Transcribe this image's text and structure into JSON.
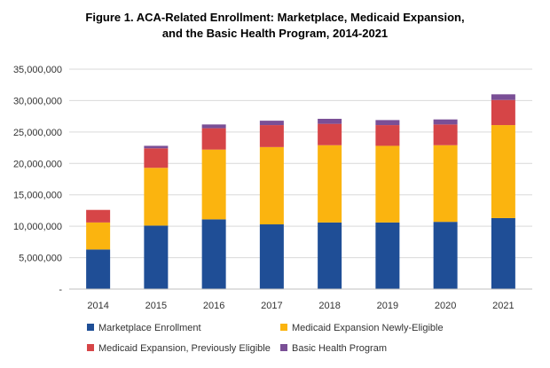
{
  "chart_data": {
    "type": "bar",
    "stacked": true,
    "title_lines": [
      "Figure 1. ACA-Related Enrollment: Marketplace, Medicaid Expansion,",
      "and the Basic Health Program, 2014-2021"
    ],
    "xlabel": "",
    "ylabel": "",
    "categories": [
      "2014",
      "2015",
      "2016",
      "2017",
      "2018",
      "2019",
      "2020",
      "2021"
    ],
    "ylim": [
      0,
      35000000
    ],
    "y_ticks": [
      0,
      5000000,
      10000000,
      15000000,
      20000000,
      25000000,
      30000000,
      35000000
    ],
    "y_tick_labels": [
      "-",
      "5,000,000",
      "10,000,000",
      "15,000,000",
      "20,000,000",
      "25,000,000",
      "30,000,000",
      "35,000,000"
    ],
    "grid": "horizontal",
    "legend_position": "bottom",
    "series": [
      {
        "name": "Marketplace Enrollment",
        "color": "#1f4e96",
        "values": [
          6300000,
          10100000,
          11100000,
          10300000,
          10600000,
          10600000,
          10700000,
          11300000
        ]
      },
      {
        "name": "Medicaid Expansion Newly-Eligible",
        "color": "#fbb40f",
        "values": [
          4300000,
          9200000,
          11100000,
          12300000,
          12300000,
          12200000,
          12200000,
          14800000
        ]
      },
      {
        "name": "Medicaid Expansion, Previously Eligible",
        "color": "#d64547",
        "values": [
          2000000,
          3100000,
          3400000,
          3500000,
          3400000,
          3300000,
          3300000,
          4000000
        ]
      },
      {
        "name": "Basic Health Program",
        "color": "#7a4f96",
        "values": [
          0,
          400000,
          600000,
          700000,
          800000,
          800000,
          800000,
          900000
        ]
      }
    ]
  }
}
